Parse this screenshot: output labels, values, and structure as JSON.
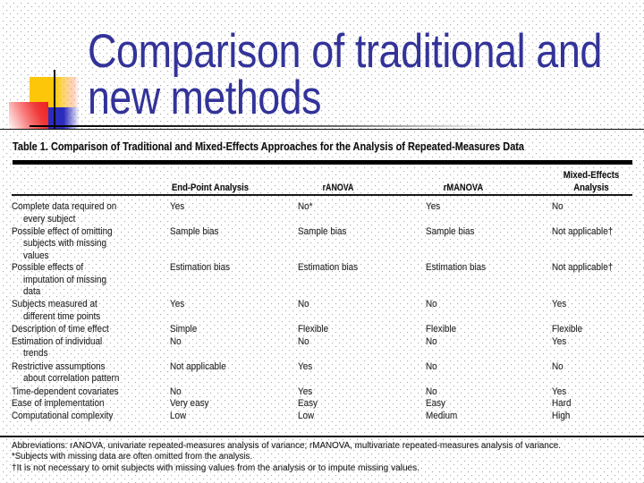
{
  "slide": {
    "title_lines": [
      "Comparison of traditional and",
      "new methods"
    ],
    "colors": {
      "title_blue": "#333399",
      "square_yellow": "#fdc608",
      "square_red": "#ee2222",
      "square_blue": "#2b2bbd"
    }
  },
  "table": {
    "caption": "Table 1. Comparison of Traditional and Mixed-Effects Approaches for the Analysis of Repeated-Measures Data",
    "column_header_lines": [
      [
        "End-Point Analysis"
      ],
      [
        "rANOVA"
      ],
      [
        "rMANOVA"
      ],
      [
        "Mixed-Effects",
        "Analysis"
      ]
    ],
    "rows": [
      {
        "label_lines": [
          "Complete data required on",
          "every subject"
        ],
        "values": [
          "Yes",
          "No*",
          "Yes",
          "No"
        ]
      },
      {
        "label_lines": [
          "Possible effect of omitting",
          "subjects with missing",
          "values"
        ],
        "values": [
          "Sample bias",
          "Sample bias",
          "Sample bias",
          "Not applicable†"
        ]
      },
      {
        "label_lines": [
          "Possible effects of",
          "imputation of missing",
          "data"
        ],
        "values": [
          "Estimation bias",
          "Estimation bias",
          "Estimation bias",
          "Not applicable†"
        ]
      },
      {
        "label_lines": [
          "Subjects measured at",
          "different time points"
        ],
        "values": [
          "Yes",
          "No",
          "No",
          "Yes"
        ]
      },
      {
        "label_lines": [
          "Description of time effect"
        ],
        "values": [
          "Simple",
          "Flexible",
          "Flexible",
          "Flexible"
        ]
      },
      {
        "label_lines": [
          "Estimation of individual",
          "trends"
        ],
        "values": [
          "No",
          "No",
          "No",
          "Yes"
        ]
      },
      {
        "label_lines": [
          "Restrictive assumptions",
          "about correlation pattern"
        ],
        "values": [
          "Not applicable",
          "Yes",
          "No",
          "No"
        ]
      },
      {
        "label_lines": [
          "Time-dependent covariates"
        ],
        "values": [
          "No",
          "Yes",
          "No",
          "Yes"
        ]
      },
      {
        "label_lines": [
          "Ease of implementation"
        ],
        "values": [
          "Very easy",
          "Easy",
          "Easy",
          "Hard"
        ]
      },
      {
        "label_lines": [
          "Computational complexity"
        ],
        "values": [
          "Low",
          "Low",
          "Medium",
          "High"
        ]
      }
    ],
    "footnotes": [
      "Abbreviations: rANOVA, univariate repeated-measures analysis of variance; rMANOVA, multivariate repeated-measures analysis of variance.",
      "*Subjects with missing data are often omitted from the analysis.",
      "†It is not necessary to omit subjects with missing values from the analysis or to impute missing values."
    ]
  }
}
